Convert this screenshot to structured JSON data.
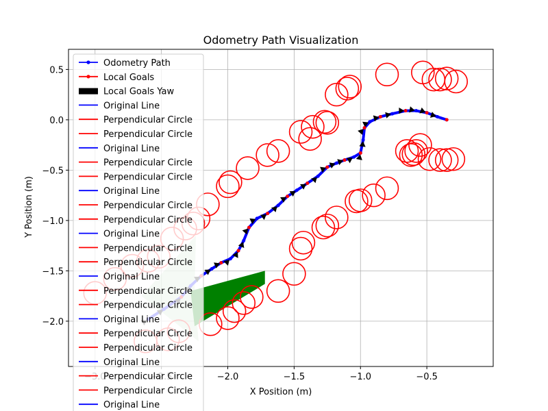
{
  "chart_data": {
    "type": "line",
    "title": "Odometry Path Visualization",
    "xlabel": "X Position (m)",
    "ylabel": "Y Position (m)",
    "xlim": [
      -3.2,
      0.0
    ],
    "ylim": [
      -2.45,
      0.7
    ],
    "xticks": [
      -3.0,
      -2.5,
      -2.0,
      -1.5,
      -1.0,
      -0.5
    ],
    "xtick_labels": [
      "−3.0",
      "−2.5",
      "−2.0",
      "−1.5",
      "−1.0",
      "−0.5"
    ],
    "yticks": [
      -2.0,
      -1.5,
      -1.0,
      -0.5,
      0.0,
      0.5
    ],
    "ytick_labels": [
      "−2.0",
      "−1.5",
      "−1.0",
      "−0.5",
      "0.0",
      "0.5"
    ],
    "grid": true,
    "legend_position": "upper-left",
    "colors": {
      "path": "#0000ff",
      "goals": "#ff0000",
      "yaw": "#000000",
      "fan": "#008000"
    },
    "legend": [
      {
        "label": "Odometry Path",
        "kind": "line-marker",
        "color": "#0000ff"
      },
      {
        "label": "Local Goals",
        "kind": "line-marker",
        "color": "#ff0000"
      },
      {
        "label": "Local Goals Yaw",
        "kind": "patch",
        "color": "#000000"
      },
      {
        "label": "Original Line",
        "kind": "line",
        "color": "#0000ff"
      },
      {
        "label": "Perpendicular Circle",
        "kind": "line",
        "color": "#ff0000"
      },
      {
        "label": "Perpendicular Circle",
        "kind": "line",
        "color": "#ff0000"
      },
      {
        "label": "Original Line",
        "kind": "line",
        "color": "#0000ff"
      },
      {
        "label": "Perpendicular Circle",
        "kind": "line",
        "color": "#ff0000"
      },
      {
        "label": "Perpendicular Circle",
        "kind": "line",
        "color": "#ff0000"
      },
      {
        "label": "Original Line",
        "kind": "line",
        "color": "#0000ff"
      },
      {
        "label": "Perpendicular Circle",
        "kind": "line",
        "color": "#ff0000"
      },
      {
        "label": "Perpendicular Circle",
        "kind": "line",
        "color": "#ff0000"
      },
      {
        "label": "Original Line",
        "kind": "line",
        "color": "#0000ff"
      },
      {
        "label": "Perpendicular Circle",
        "kind": "line",
        "color": "#ff0000"
      },
      {
        "label": "Perpendicular Circle",
        "kind": "line",
        "color": "#ff0000"
      },
      {
        "label": "Original Line",
        "kind": "line",
        "color": "#0000ff"
      },
      {
        "label": "Perpendicular Circle",
        "kind": "line",
        "color": "#ff0000"
      },
      {
        "label": "Perpendicular Circle",
        "kind": "line",
        "color": "#ff0000"
      },
      {
        "label": "Original Line",
        "kind": "line",
        "color": "#0000ff"
      },
      {
        "label": "Perpendicular Circle",
        "kind": "line",
        "color": "#ff0000"
      },
      {
        "label": "Perpendicular Circle",
        "kind": "line",
        "color": "#ff0000"
      },
      {
        "label": "Original Line",
        "kind": "line",
        "color": "#0000ff"
      },
      {
        "label": "Perpendicular Circle",
        "kind": "line",
        "color": "#ff0000"
      },
      {
        "label": "Perpendicular Circle",
        "kind": "line",
        "color": "#ff0000"
      },
      {
        "label": "Original Line",
        "kind": "line",
        "color": "#0000ff"
      }
    ],
    "odometry_path": {
      "x": [
        -2.6,
        -2.48,
        -2.35,
        -2.28,
        -2.2,
        -2.12,
        -2.05,
        -1.98,
        -1.92,
        -1.88,
        -1.84,
        -1.78,
        -1.7,
        -1.62,
        -1.55,
        -1.48,
        -1.4,
        -1.32,
        -1.25,
        -1.18,
        -1.12,
        -1.05,
        -1.0,
        -0.98,
        -0.97,
        -0.93,
        -0.85,
        -0.76,
        -0.66,
        -0.58,
        -0.5,
        -0.42,
        -0.35
      ],
      "y": [
        -1.98,
        -1.88,
        -1.76,
        -1.65,
        -1.55,
        -1.48,
        -1.42,
        -1.38,
        -1.3,
        -1.2,
        -1.07,
        -0.98,
        -0.93,
        -0.85,
        -0.76,
        -0.7,
        -0.63,
        -0.56,
        -0.47,
        -0.43,
        -0.4,
        -0.37,
        -0.33,
        -0.2,
        -0.08,
        -0.02,
        0.03,
        0.06,
        0.09,
        0.09,
        0.07,
        0.03,
        0.0
      ]
    },
    "local_goals": {
      "x": [
        -2.35,
        -2.2,
        -2.05,
        -1.92,
        -1.84,
        -1.7,
        -1.55,
        -1.4,
        -1.25,
        -1.12,
        -1.0,
        -0.97,
        -0.85,
        -0.66,
        -0.5,
        -0.35
      ],
      "y": [
        -1.76,
        -1.55,
        -1.42,
        -1.3,
        -1.07,
        -0.93,
        -0.76,
        -0.63,
        -0.47,
        -0.4,
        -0.33,
        -0.08,
        0.03,
        0.09,
        0.07,
        0.0
      ]
    },
    "circles_upper": {
      "x": [
        -3.0,
        -2.85,
        -2.72,
        -2.6,
        -2.52,
        -2.42,
        -2.32,
        -2.26,
        -2.22,
        -2.15,
        -2.0,
        -1.98,
        -1.85,
        -1.7,
        -1.62,
        -1.45,
        -1.38,
        -1.36,
        -1.27,
        -1.25,
        -1.18,
        -1.1,
        -1.08,
        -0.8,
        -0.53,
        -0.45,
        -0.4,
        -0.35,
        -0.28
      ],
      "y": [
        -1.72,
        -1.58,
        -1.45,
        -1.4,
        -1.36,
        -1.18,
        -1.08,
        -1.03,
        -0.98,
        -0.84,
        -0.66,
        -0.62,
        -0.48,
        -0.35,
        -0.31,
        -0.12,
        -0.19,
        -0.07,
        -0.02,
        -0.03,
        0.25,
        0.31,
        0.33,
        0.45,
        0.47,
        0.4,
        0.4,
        0.41,
        0.38
      ]
    },
    "circles_lower": {
      "x": [
        -2.62,
        -2.45,
        -2.37,
        -2.13,
        -2.0,
        -1.95,
        -1.88,
        -1.82,
        -1.62,
        -1.5,
        -1.45,
        -1.43,
        -1.28,
        -1.25,
        -1.18,
        -1.03,
        -1.0,
        -0.9,
        -0.8,
        -0.65,
        -0.62,
        -0.6,
        -0.58,
        -0.55,
        -0.48,
        -0.4,
        -0.35,
        -0.3
      ],
      "y": [
        -2.2,
        -2.18,
        -2.1,
        -2.03,
        -1.97,
        -1.9,
        -1.82,
        -1.76,
        -1.7,
        -1.53,
        -1.28,
        -1.22,
        -1.07,
        -1.05,
        -0.97,
        -0.81,
        -0.8,
        -0.75,
        -0.68,
        -0.31,
        -0.35,
        -0.34,
        -0.31,
        -0.25,
        -0.39,
        -0.4,
        -0.4,
        -0.39
      ]
    },
    "circle_radius": 0.085,
    "fans": [
      {
        "apex": [
          -2.25,
          -1.7
        ],
        "points": [
          [
            -2.24,
            -1.15
          ],
          [
            -2.65,
            -1.75
          ],
          [
            -2.22,
            -2.2
          ]
        ],
        "color": "#008000",
        "alpha": 0.2
      },
      {
        "apex": [
          -2.28,
          -1.7
        ],
        "points": [
          [
            -1.72,
            -1.5
          ],
          [
            -1.72,
            -1.63
          ],
          [
            -2.25,
            -2.05
          ]
        ],
        "color": "#008000",
        "alpha": 1.0
      }
    ],
    "yaw_segments": 22
  }
}
